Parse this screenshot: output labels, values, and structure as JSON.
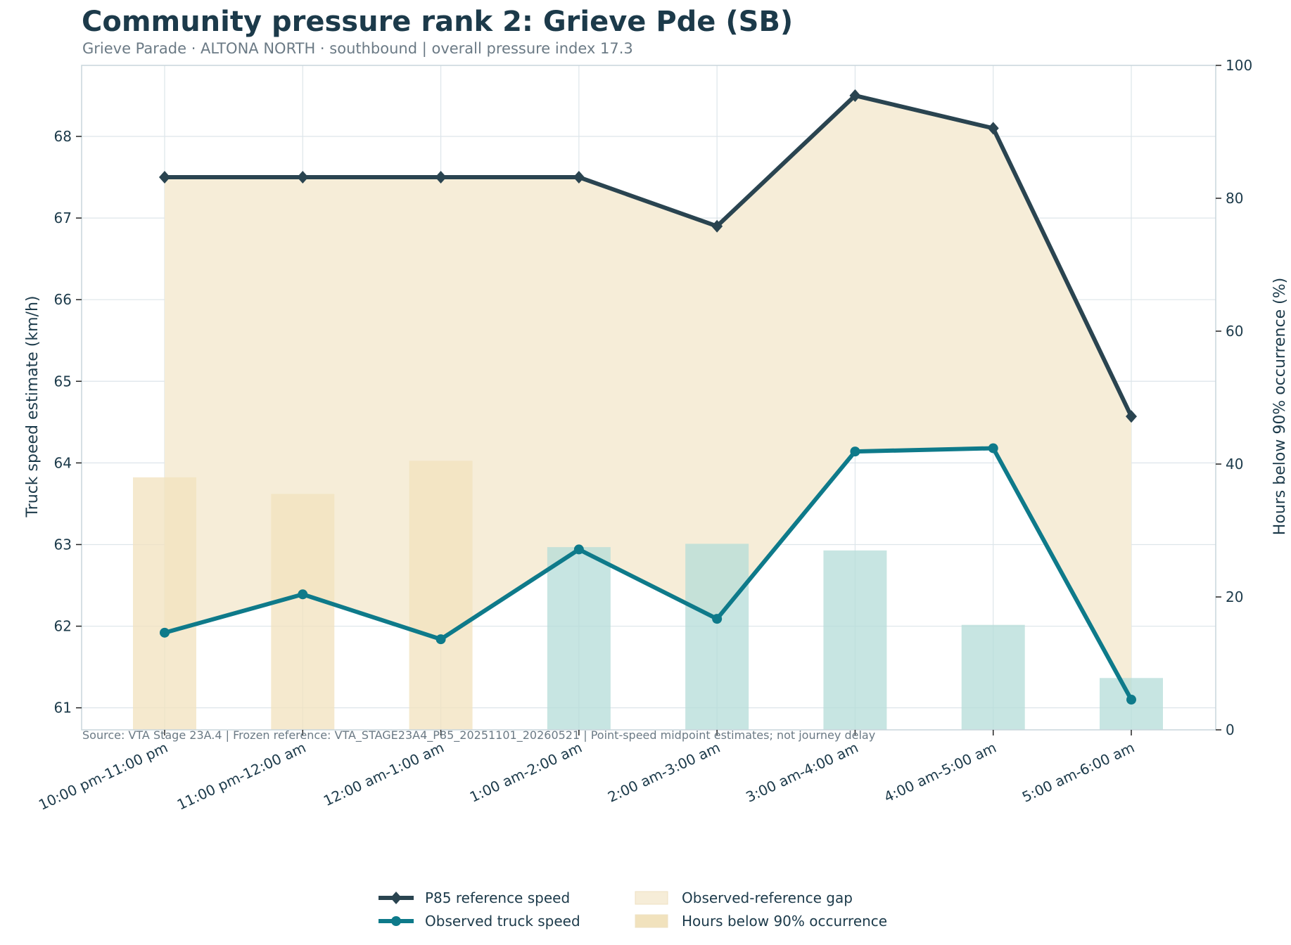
{
  "header": {
    "title": "Community pressure rank 2: Grieve Pde (SB)",
    "subtitle": "Grieve Parade · ALTONA NORTH · southbound | overall pressure index 17.3"
  },
  "source_note": "Source: VTA Stage 23A.4 | Frozen reference: VTA_STAGE23A4_P85_20251101_20260521 | Point-speed midpoint estimates; not journey delay",
  "colors": {
    "p85": "#2a4450",
    "observed": "#0e7a8a",
    "gap_fill": "#f6edd8",
    "bar_above": "#f1e2bd",
    "bar_below": "#b4dcd8",
    "grid": "#dde5ea",
    "axis": "#c8d5dc",
    "text": "#1c3a4a"
  },
  "chart_data": {
    "type": "line",
    "categories": [
      "10:00 pm-11:00 pm",
      "11:00 pm-12:00 am",
      "12:00 am-1:00 am",
      "1:00 am-2:00 am",
      "2:00 am-3:00 am",
      "3:00 am-4:00 am",
      "4:00 am-5:00 am",
      "5:00 am-6:00 am"
    ],
    "ylabel": "Truck speed estimate (km/h)",
    "ylabel_right": "Hours below 90% occurrence (%)",
    "ylim": [
      60.73,
      68.87
    ],
    "yticks": [
      61,
      62,
      63,
      64,
      65,
      66,
      67,
      68
    ],
    "ylim_right": [
      0,
      100
    ],
    "yticks_right": [
      0,
      20,
      40,
      60,
      80,
      100
    ],
    "grid": true,
    "legend_position": "bottom-center",
    "series": [
      {
        "name": "P85 reference speed",
        "axis": "left",
        "marker": "diamond",
        "values": [
          67.5,
          67.5,
          67.5,
          67.5,
          66.9,
          68.5,
          68.1,
          64.57
        ]
      },
      {
        "name": "Observed truck speed",
        "axis": "left",
        "marker": "circle",
        "values": [
          61.92,
          62.39,
          61.84,
          62.94,
          62.09,
          64.14,
          64.18,
          61.1
        ]
      },
      {
        "name": "Observed-reference gap",
        "type": "area"
      },
      {
        "name": "Hours below 90% occurrence",
        "type": "bar",
        "axis": "right",
        "values": [
          38,
          35.5,
          40.5,
          27.5,
          28,
          27,
          15.8,
          7.8
        ],
        "color_group": [
          "above",
          "above",
          "above",
          "below",
          "below",
          "below",
          "below",
          "below"
        ]
      }
    ],
    "legend": [
      "P85 reference speed",
      "Observed truck speed",
      "Observed-reference gap",
      "Hours below 90% occurrence"
    ]
  }
}
